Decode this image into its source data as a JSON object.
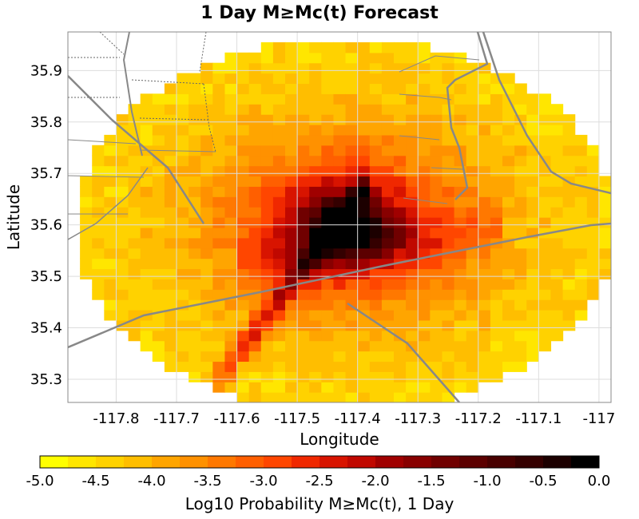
{
  "chart_data": {
    "type": "heatmap",
    "title": "1 Day M≥Mc(t) Forecast",
    "xlabel": "Longitude",
    "ylabel": "Latitude",
    "xlim": [
      -117.88,
      -116.98
    ],
    "ylim": [
      35.255,
      35.975
    ],
    "x_ticks": [
      -117.8,
      -117.7,
      -117.6,
      -117.5,
      -117.4,
      -117.3,
      -117.2,
      -117.1,
      -117.0
    ],
    "x_tick_labels": [
      "-117.8",
      "-117.7",
      "-117.6",
      "-117.5",
      "-117.4",
      "-117.3",
      "-117.2",
      "-117.1",
      "-117"
    ],
    "y_ticks": [
      35.3,
      35.4,
      35.5,
      35.6,
      35.7,
      35.8,
      35.9
    ],
    "y_tick_labels": [
      "35.3",
      "35.4",
      "35.5",
      "35.6",
      "35.7",
      "35.8",
      "35.9"
    ],
    "grid": true,
    "grid_spacing_deg": 0.02,
    "peak": {
      "lon": -117.43,
      "lat": 35.61,
      "value": -0.2
    },
    "approx_value_range": [
      -4.5,
      -0.2
    ],
    "colorbar": {
      "label": "Log10 Probability M≥Mc(t), 1 Day",
      "min": -5.0,
      "max": 0.0,
      "tick_labels": [
        "-5.0",
        "-4.5",
        "-4.0",
        "-3.5",
        "-3.0",
        "-2.5",
        "-2.0",
        "-1.5",
        "-1.0",
        "-0.5",
        "0.0"
      ],
      "colors": [
        "#ffff00",
        "#ffe600",
        "#ffd200",
        "#ffbe00",
        "#ffa500",
        "#ff9100",
        "#ff7800",
        "#ff5f00",
        "#ff4600",
        "#f02800",
        "#d81400",
        "#c00800",
        "#a00000",
        "#880000",
        "#700000",
        "#5c0000",
        "#480000",
        "#340000",
        "#1c0000",
        "#000000"
      ]
    }
  }
}
